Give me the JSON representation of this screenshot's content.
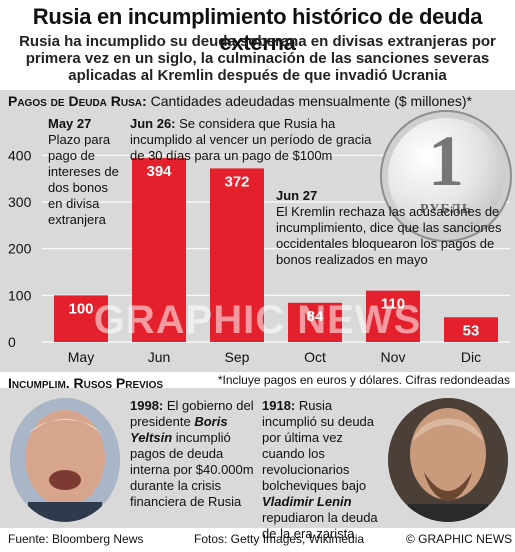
{
  "title": "Rusia en incumplimiento histórico de deuda externa",
  "subtitle": "Rusia ha incumplido su deuda soberana en divisas extranjeras por primera vez en un siglo, la culminación de las sanciones severas aplicadas al Kremlin después de que invadió Ucrania",
  "chart_section": {
    "heading": "Pagos de Deuda Rusa:",
    "description": "Cantidades adeudadas mensualmente ($ millones)*",
    "footnote": "*Incluye pagos en euros y dólares. Cifras redondeadas"
  },
  "annotations": {
    "may27": {
      "date": "May 27",
      "text": "Plazo para pago de intereses de dos bonos en divisa extranjera"
    },
    "jun26": {
      "date": "Jun 26:",
      "text": "Se considera que Rusia ha incumplido al vencer un período de gracia de 30 días para un pago de $100m"
    },
    "jun27": {
      "date": "Jun 27",
      "text": "El Kremlin rechaza las acusaciones de incumplimiento, dice que las sanciones occidentales bloquearon los pagos de bonos realizados en mayo"
    }
  },
  "coin": {
    "numeral": "1",
    "word": "РУБЛЬ"
  },
  "watermark": "GRAPHIC NEWS",
  "chart_data": {
    "type": "bar",
    "categories": [
      "May",
      "Jun",
      "Sep",
      "Oct",
      "Nov",
      "Dic"
    ],
    "values": [
      100,
      394,
      372,
      84,
      110,
      53
    ],
    "ylim": [
      0,
      450
    ],
    "yticks": [
      0,
      100,
      200,
      300,
      400
    ],
    "ytick_labels": [
      "0",
      "100",
      "200",
      "300",
      "400"
    ],
    "bar_color": "#e3202b",
    "grid": true
  },
  "previous_section": {
    "heading": "Incumplim. Rusos Previos",
    "e1998": {
      "year": "1998:",
      "text_a": "El gobierno del presidente",
      "name": "Boris Yeltsin",
      "text_b": "incumplió pagos de deuda interna por $40.000m durante la crisis financiera de Rusia"
    },
    "e1918": {
      "year": "1918:",
      "text_a": "Rusia incumplió su deuda por última vez cuando los revolucionarios bolcheviques bajo",
      "name": "Vladimir Lenin",
      "text_b": "repudiaron la deuda de la era zarista"
    }
  },
  "footer": {
    "source": "Fuente: Bloomberg News",
    "photos": "Fotos: Getty Images, Wikimedia",
    "copyright": "© GRAPHIC NEWS"
  }
}
